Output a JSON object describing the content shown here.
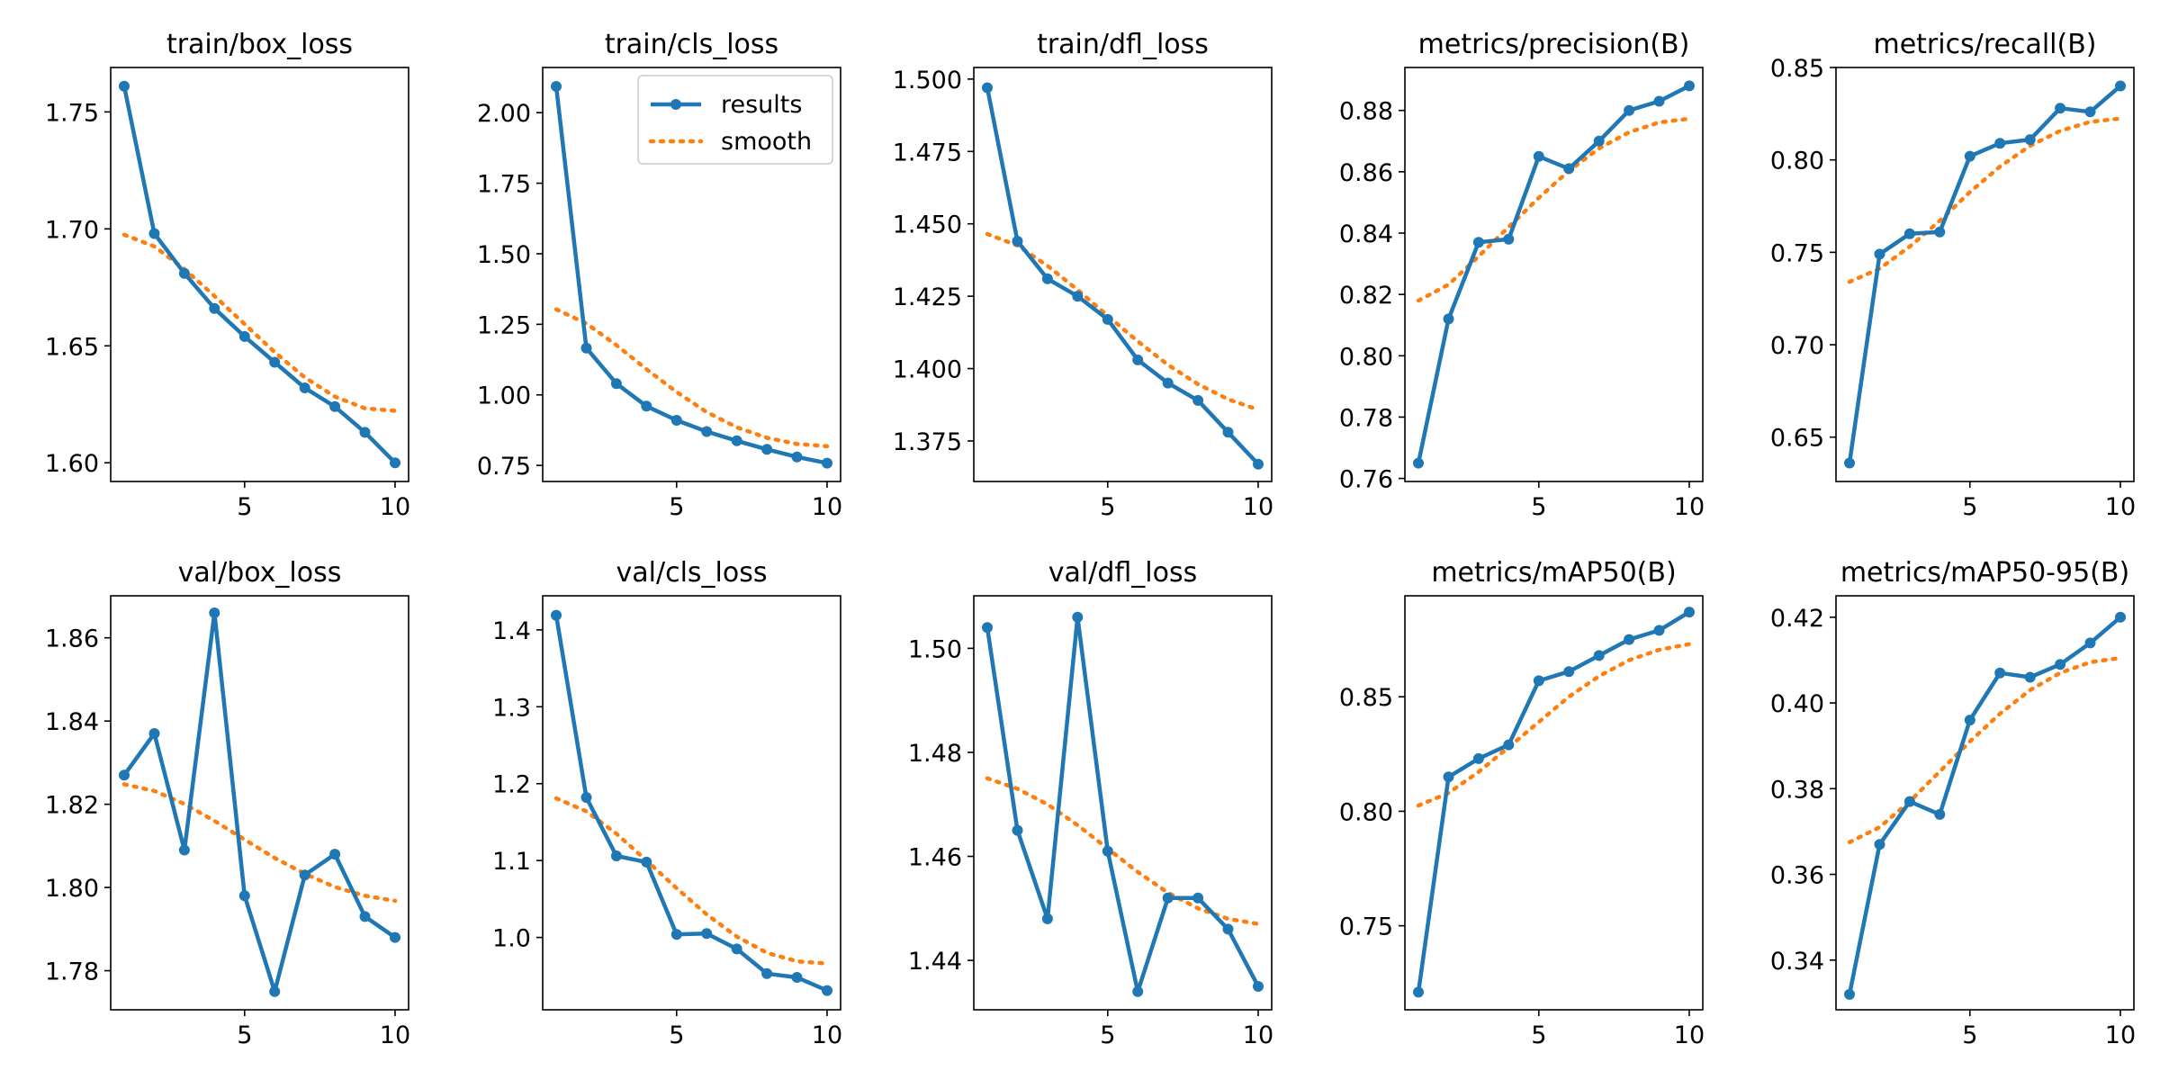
{
  "figure": {
    "colors": {
      "results": "#1f77b4",
      "smooth": "#ff7f0e"
    },
    "legend": {
      "placement": "top-right",
      "panel_title": "train/cls_loss",
      "results": "results",
      "smooth": "smooth"
    }
  },
  "chart_data": [
    {
      "type": "line",
      "title": "train/box_loss",
      "x": [
        1,
        2,
        3,
        4,
        5,
        6,
        7,
        8,
        9,
        10
      ],
      "xlim": [
        0.55,
        10.45
      ],
      "xticks": [
        5,
        10
      ],
      "ylim": [
        1.592,
        1.769
      ],
      "yticks": [
        1.6,
        1.65,
        1.7,
        1.75
      ],
      "ytick_decimals": 2,
      "series": [
        {
          "name": "results",
          "values": [
            1.761,
            1.698,
            1.681,
            1.666,
            1.654,
            1.643,
            1.632,
            1.624,
            1.613,
            1.6
          ]
        },
        {
          "name": "smooth",
          "values": [
            1.6975,
            1.6925,
            1.6828,
            1.6713,
            1.6593,
            1.6473,
            1.6365,
            1.6283,
            1.6233,
            1.6222
          ]
        }
      ]
    },
    {
      "type": "line",
      "title": "train/cls_loss",
      "x": [
        1,
        2,
        3,
        4,
        5,
        6,
        7,
        8,
        9,
        10
      ],
      "xlim": [
        0.55,
        10.45
      ],
      "xticks": [
        5,
        10
      ],
      "ylim": [
        0.693,
        2.16
      ],
      "yticks": [
        0.75,
        1.0,
        1.25,
        1.5,
        1.75,
        2.0
      ],
      "ytick_decimals": 2,
      "series": [
        {
          "name": "results",
          "values": [
            2.093,
            1.166,
            1.04,
            0.96,
            0.91,
            0.87,
            0.837,
            0.807,
            0.78,
            0.758
          ]
        },
        {
          "name": "smooth",
          "values": [
            1.303,
            1.253,
            1.176,
            1.091,
            1.01,
            0.939,
            0.885,
            0.848,
            0.826,
            0.818
          ]
        }
      ]
    },
    {
      "type": "line",
      "title": "train/dfl_loss",
      "x": [
        1,
        2,
        3,
        4,
        5,
        6,
        7,
        8,
        9,
        10
      ],
      "xlim": [
        0.55,
        10.45
      ],
      "xticks": [
        5,
        10
      ],
      "ylim": [
        1.361,
        1.504
      ],
      "yticks": [
        1.375,
        1.4,
        1.425,
        1.45,
        1.475,
        1.5
      ],
      "ytick_decimals": 3,
      "series": [
        {
          "name": "results",
          "values": [
            1.497,
            1.444,
            1.431,
            1.425,
            1.417,
            1.403,
            1.395,
            1.389,
            1.378,
            1.367
          ]
        },
        {
          "name": "smooth",
          "values": [
            1.4465,
            1.4425,
            1.4355,
            1.4272,
            1.4182,
            1.4094,
            1.4013,
            1.3946,
            1.3894,
            1.3858
          ]
        }
      ]
    },
    {
      "type": "line",
      "title": "metrics/precision(B)",
      "x": [
        1,
        2,
        3,
        4,
        5,
        6,
        7,
        8,
        9,
        10
      ],
      "xlim": [
        0.55,
        10.45
      ],
      "xticks": [
        5,
        10
      ],
      "ylim": [
        0.759,
        0.894
      ],
      "yticks": [
        0.76,
        0.78,
        0.8,
        0.82,
        0.84,
        0.86,
        0.88
      ],
      "ytick_decimals": 2,
      "series": [
        {
          "name": "results",
          "values": [
            0.765,
            0.812,
            0.837,
            0.838,
            0.865,
            0.861,
            0.87,
            0.88,
            0.883,
            0.888
          ]
        },
        {
          "name": "smooth",
          "values": [
            0.818,
            0.8232,
            0.8324,
            0.842,
            0.8515,
            0.8603,
            0.8676,
            0.8729,
            0.8761,
            0.8773
          ]
        }
      ]
    },
    {
      "type": "line",
      "title": "metrics/recall(B)",
      "x": [
        1,
        2,
        3,
        4,
        5,
        6,
        7,
        8,
        9,
        10
      ],
      "xlim": [
        0.55,
        10.45
      ],
      "xticks": [
        5,
        10
      ],
      "ylim": [
        0.626,
        0.85
      ],
      "yticks": [
        0.65,
        0.7,
        0.75,
        0.8,
        0.85
      ],
      "ytick_decimals": 2,
      "series": [
        {
          "name": "results",
          "values": [
            0.636,
            0.749,
            0.76,
            0.761,
            0.802,
            0.809,
            0.811,
            0.828,
            0.826,
            0.84
          ]
        },
        {
          "name": "smooth",
          "values": [
            0.734,
            0.7412,
            0.7531,
            0.767,
            0.7826,
            0.7964,
            0.8077,
            0.8157,
            0.8206,
            0.8224
          ]
        }
      ]
    },
    {
      "type": "line",
      "title": "val/box_loss",
      "x": [
        1,
        2,
        3,
        4,
        5,
        6,
        7,
        8,
        9,
        10
      ],
      "xlim": [
        0.55,
        10.45
      ],
      "xticks": [
        5,
        10
      ],
      "ylim": [
        1.7706,
        1.8701
      ],
      "yticks": [
        1.78,
        1.8,
        1.82,
        1.84,
        1.86
      ],
      "ytick_decimals": 2,
      "series": [
        {
          "name": "results",
          "values": [
            1.827,
            1.837,
            1.809,
            1.866,
            1.798,
            1.775,
            1.803,
            1.808,
            1.793,
            1.788
          ]
        },
        {
          "name": "smooth",
          "values": [
            1.8248,
            1.8232,
            1.8201,
            1.816,
            1.8115,
            1.8071,
            1.8033,
            1.8001,
            1.798,
            1.7968
          ]
        }
      ]
    },
    {
      "type": "line",
      "title": "val/cls_loss",
      "x": [
        1,
        2,
        3,
        4,
        5,
        6,
        7,
        8,
        9,
        10
      ],
      "xlim": [
        0.55,
        10.45
      ],
      "xticks": [
        5,
        10
      ],
      "ylim": [
        0.9059,
        1.4443
      ],
      "yticks": [
        1.0,
        1.1,
        1.2,
        1.3,
        1.4
      ],
      "ytick_decimals": 1,
      "series": [
        {
          "name": "results",
          "values": [
            1.419,
            1.182,
            1.106,
            1.098,
            1.004,
            1.005,
            0.985,
            0.953,
            0.948,
            0.931
          ]
        },
        {
          "name": "smooth",
          "values": [
            1.181,
            1.164,
            1.135,
            1.1,
            1.064,
            1.03,
            1.001,
            0.98,
            0.969,
            0.966
          ]
        }
      ]
    },
    {
      "type": "line",
      "title": "val/dfl_loss",
      "x": [
        1,
        2,
        3,
        4,
        5,
        6,
        7,
        8,
        9,
        10
      ],
      "xlim": [
        0.55,
        10.45
      ],
      "xticks": [
        5,
        10
      ],
      "ylim": [
        1.4305,
        1.5101
      ],
      "yticks": [
        1.44,
        1.46,
        1.48,
        1.5
      ],
      "ytick_decimals": 2,
      "series": [
        {
          "name": "results",
          "values": [
            1.504,
            1.465,
            1.448,
            1.506,
            1.461,
            1.434,
            1.452,
            1.452,
            1.446,
            1.435
          ]
        },
        {
          "name": "smooth",
          "values": [
            1.475,
            1.473,
            1.47,
            1.466,
            1.4615,
            1.457,
            1.453,
            1.45,
            1.448,
            1.447
          ]
        }
      ]
    },
    {
      "type": "line",
      "title": "metrics/mAP50(B)",
      "x": [
        1,
        2,
        3,
        4,
        5,
        6,
        7,
        8,
        9,
        10
      ],
      "xlim": [
        0.55,
        10.45
      ],
      "xticks": [
        5,
        10
      ],
      "ylim": [
        0.7133,
        0.8941
      ],
      "yticks": [
        0.75,
        0.8,
        0.85
      ],
      "ytick_decimals": 2,
      "series": [
        {
          "name": "results",
          "values": [
            0.721,
            0.815,
            0.823,
            0.829,
            0.857,
            0.861,
            0.868,
            0.875,
            0.879,
            0.887
          ]
        },
        {
          "name": "smooth",
          "values": [
            0.8025,
            0.808,
            0.8172,
            0.828,
            0.839,
            0.85,
            0.859,
            0.866,
            0.8705,
            0.873
          ]
        }
      ]
    },
    {
      "type": "line",
      "title": "metrics/mAP50-95(B)",
      "x": [
        1,
        2,
        3,
        4,
        5,
        6,
        7,
        8,
        9,
        10
      ],
      "xlim": [
        0.55,
        10.45
      ],
      "xticks": [
        5,
        10
      ],
      "ylim": [
        0.3284,
        0.425
      ],
      "yticks": [
        0.34,
        0.36,
        0.38,
        0.4,
        0.42
      ],
      "ytick_decimals": 2,
      "series": [
        {
          "name": "results",
          "values": [
            0.332,
            0.367,
            0.377,
            0.374,
            0.396,
            0.407,
            0.406,
            0.409,
            0.414,
            0.42
          ]
        },
        {
          "name": "smooth",
          "values": [
            0.3675,
            0.371,
            0.377,
            0.384,
            0.391,
            0.3975,
            0.403,
            0.407,
            0.4095,
            0.4105
          ]
        }
      ]
    }
  ]
}
